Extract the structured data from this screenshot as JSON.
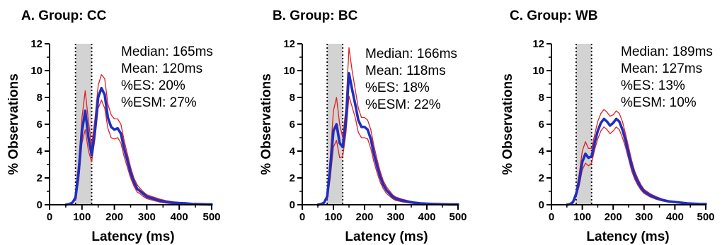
{
  "chart_data": [
    {
      "type": "line",
      "title": "A. Group: CC",
      "xlabel": "Latency (ms)",
      "ylabel": "% Observations",
      "xlim": [
        0,
        500
      ],
      "ylim": [
        0,
        12
      ],
      "xticks": [
        0,
        100,
        200,
        300,
        400,
        500
      ],
      "yticks": [
        0,
        2,
        4,
        6,
        8,
        10,
        12
      ],
      "grid": false,
      "shaded_region": [
        80,
        130
      ],
      "dotted_lines": [
        80,
        130
      ],
      "stats": [
        "Median: 165ms",
        "Mean: 120ms",
        "%ES: 20%",
        "%ESM: 27%"
      ],
      "colors": {
        "mean": "#1f2fbf",
        "ci": "#e02020",
        "shade": "#d3d3d3"
      },
      "x": [
        50,
        60,
        70,
        80,
        90,
        100,
        110,
        120,
        130,
        140,
        150,
        160,
        170,
        180,
        190,
        200,
        210,
        220,
        230,
        240,
        250,
        260,
        270,
        280,
        290,
        300,
        320,
        340,
        360,
        380,
        400,
        420,
        440,
        460,
        480,
        500
      ],
      "series": [
        {
          "values": [
            0,
            0.05,
            0.15,
            0.5,
            2.5,
            5.5,
            7.0,
            5.0,
            3.7,
            5.5,
            8.0,
            8.7,
            8.2,
            6.5,
            5.8,
            5.6,
            5.7,
            5.3,
            4.2,
            3.3,
            2.4,
            1.7,
            1.2,
            1.0,
            0.8,
            0.6,
            0.45,
            0.3,
            0.2,
            0.15,
            0.12,
            0.1,
            0.06,
            0.04,
            0.03,
            0.02
          ]
        },
        {
          "values": [
            0,
            0.08,
            0.2,
            0.7,
            3.2,
            6.5,
            8.5,
            6.2,
            4.4,
            6.4,
            8.9,
            9.7,
            9.4,
            7.5,
            6.7,
            6.4,
            6.4,
            6.0,
            4.8,
            3.8,
            2.8,
            2.0,
            1.5,
            1.2,
            0.95,
            0.75,
            0.58,
            0.42,
            0.3,
            0.22,
            0.18,
            0.15,
            0.1,
            0.07,
            0.05,
            0.04
          ]
        },
        {
          "values": [
            0,
            0.02,
            0.1,
            0.35,
            1.8,
            4.6,
            5.6,
            4.0,
            3.2,
            4.9,
            7.2,
            7.8,
            7.2,
            5.7,
            5.0,
            4.9,
            5.0,
            4.6,
            3.6,
            2.8,
            2.0,
            1.4,
            0.95,
            0.8,
            0.6,
            0.45,
            0.32,
            0.2,
            0.12,
            0.08,
            0.06,
            0.05,
            0.03,
            0.02,
            0.01,
            0.0
          ]
        }
      ]
    },
    {
      "type": "line",
      "title": "B. Group: BC",
      "xlabel": "Latency (ms)",
      "ylabel": "% Observations",
      "xlim": [
        0,
        500
      ],
      "ylim": [
        0,
        12
      ],
      "xticks": [
        0,
        100,
        200,
        300,
        400,
        500
      ],
      "yticks": [
        0,
        2,
        4,
        6,
        8,
        10,
        12
      ],
      "grid": false,
      "shaded_region": [
        80,
        130
      ],
      "dotted_lines": [
        80,
        130
      ],
      "stats": [
        "Median: 166ms",
        "Mean: 118ms",
        "%ES: 18%",
        "%ESM: 22%"
      ],
      "colors": {
        "mean": "#1f2fbf",
        "ci": "#e02020",
        "shade": "#d3d3d3"
      },
      "x": [
        50,
        60,
        70,
        80,
        90,
        100,
        110,
        120,
        130,
        140,
        150,
        160,
        170,
        180,
        190,
        200,
        210,
        220,
        230,
        240,
        250,
        260,
        270,
        280,
        290,
        300,
        320,
        340,
        360,
        380,
        400,
        420,
        440,
        460,
        480,
        500
      ],
      "series": [
        {
          "values": [
            0,
            0.05,
            0.15,
            0.6,
            2.8,
            5.5,
            6.0,
            4.6,
            4.3,
            6.2,
            9.8,
            8.6,
            7.5,
            6.3,
            5.8,
            5.8,
            5.6,
            4.9,
            3.8,
            2.9,
            2.1,
            1.5,
            1.1,
            0.85,
            0.6,
            0.45,
            0.32,
            0.22,
            0.15,
            0.1,
            0.08,
            0.06,
            0.04,
            0.03,
            0.02,
            0.02
          ]
        },
        {
          "values": [
            0,
            0.08,
            0.2,
            0.8,
            3.6,
            7.0,
            8.0,
            6.0,
            5.0,
            7.2,
            11.7,
            10.0,
            8.6,
            7.2,
            6.5,
            6.5,
            6.3,
            5.6,
            4.4,
            3.4,
            2.5,
            1.8,
            1.35,
            1.05,
            0.75,
            0.58,
            0.42,
            0.3,
            0.2,
            0.14,
            0.11,
            0.09,
            0.06,
            0.05,
            0.04,
            0.03
          ]
        },
        {
          "values": [
            0,
            0.02,
            0.1,
            0.4,
            2.0,
            4.3,
            4.8,
            3.5,
            3.6,
            5.3,
            8.1,
            7.3,
            6.5,
            5.4,
            5.0,
            5.0,
            4.9,
            4.2,
            3.2,
            2.4,
            1.7,
            1.2,
            0.85,
            0.65,
            0.45,
            0.32,
            0.22,
            0.14,
            0.09,
            0.06,
            0.05,
            0.03,
            0.02,
            0.01,
            0.01,
            0.0
          ]
        }
      ]
    },
    {
      "type": "line",
      "title": "C. Group: WB",
      "xlabel": "Latency (ms)",
      "ylabel": "% Observations",
      "xlim": [
        0,
        500
      ],
      "ylim": [
        0,
        12
      ],
      "xticks": [
        0,
        100,
        200,
        300,
        400,
        500
      ],
      "yticks": [
        0,
        2,
        4,
        6,
        8,
        10,
        12
      ],
      "grid": false,
      "shaded_region": [
        80,
        130
      ],
      "dotted_lines": [
        80,
        130
      ],
      "stats": [
        "Median: 189ms",
        "Mean: 127ms",
        "%ES: 13%",
        "%ESM: 10%"
      ],
      "colors": {
        "mean": "#1f2fbf",
        "ci": "#e02020",
        "shade": "#d3d3d3"
      },
      "x": [
        50,
        60,
        70,
        80,
        90,
        100,
        110,
        120,
        130,
        140,
        150,
        160,
        170,
        180,
        190,
        200,
        210,
        220,
        230,
        240,
        250,
        260,
        270,
        280,
        290,
        300,
        320,
        340,
        360,
        380,
        400,
        420,
        440,
        460,
        480,
        500
      ],
      "series": [
        {
          "values": [
            0,
            0.05,
            0.2,
            0.8,
            1.8,
            3.2,
            3.8,
            3.5,
            3.6,
            4.6,
            5.5,
            6.1,
            6.4,
            6.2,
            5.9,
            6.1,
            6.4,
            6.2,
            5.6,
            4.8,
            3.8,
            2.9,
            2.2,
            1.7,
            1.3,
            1.0,
            0.7,
            0.5,
            0.35,
            0.25,
            0.2,
            0.15,
            0.1,
            0.08,
            0.06,
            0.05
          ]
        },
        {
          "values": [
            0,
            0.08,
            0.3,
            1.0,
            2.3,
            4.0,
            4.7,
            4.2,
            4.2,
            5.2,
            6.2,
            6.8,
            7.1,
            6.9,
            6.6,
            6.7,
            7.0,
            6.8,
            6.2,
            5.3,
            4.3,
            3.3,
            2.5,
            1.95,
            1.5,
            1.15,
            0.82,
            0.6,
            0.42,
            0.31,
            0.25,
            0.19,
            0.13,
            0.1,
            0.08,
            0.07
          ]
        },
        {
          "values": [
            0,
            0.02,
            0.1,
            0.6,
            1.4,
            2.6,
            3.1,
            2.9,
            3.1,
            4.1,
            4.9,
            5.5,
            5.8,
            5.6,
            5.3,
            5.5,
            5.8,
            5.6,
            5.0,
            4.3,
            3.4,
            2.5,
            1.9,
            1.45,
            1.1,
            0.85,
            0.58,
            0.4,
            0.28,
            0.19,
            0.15,
            0.11,
            0.07,
            0.06,
            0.04,
            0.03
          ]
        }
      ]
    }
  ]
}
